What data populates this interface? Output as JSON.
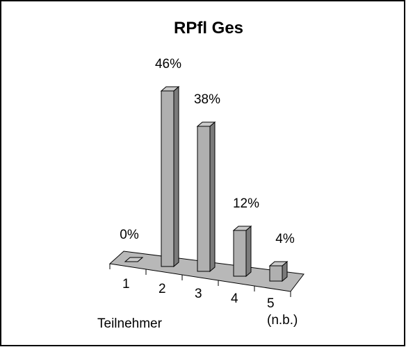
{
  "chart_data": {
    "type": "bar3d",
    "title": "RPfl Ges",
    "categories": [
      "1",
      "2",
      "3",
      "4",
      "5 (n.b.)"
    ],
    "values": [
      0,
      46,
      38,
      12,
      4
    ],
    "value_labels": [
      "0%",
      "46%",
      "38%",
      "12%",
      "4%"
    ],
    "x_label": "Teilnehmer",
    "color": "#b0b0b0"
  }
}
